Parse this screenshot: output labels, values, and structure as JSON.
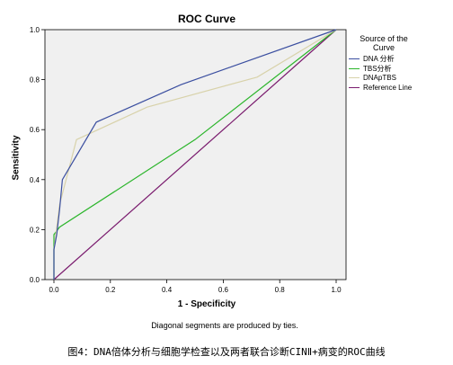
{
  "chart_data": {
    "type": "line",
    "title": "ROC Curve",
    "xlabel": "1 - Specificity",
    "ylabel": "Sensitivity",
    "xlim": [
      0,
      1
    ],
    "ylim": [
      0,
      1
    ],
    "x_ticks": [
      "0.0",
      "0.2",
      "0.4",
      "0.6",
      "0.8",
      "1.0"
    ],
    "y_ticks": [
      "0.0",
      "0.2",
      "0.4",
      "0.6",
      "0.8",
      "1.0"
    ],
    "grid": false,
    "legend_title": "Source of the Curve",
    "legend_position": "right",
    "series": [
      {
        "name": "DNA 分析",
        "color": "#3b4fa0",
        "x": [
          0.0,
          0.0,
          0.01,
          0.02,
          0.03,
          0.15,
          0.45,
          1.0
        ],
        "y": [
          0.0,
          0.12,
          0.18,
          0.28,
          0.4,
          0.63,
          0.78,
          1.0
        ]
      },
      {
        "name": "TBS分析",
        "color": "#2bb52b",
        "x": [
          0.0,
          0.0,
          0.02,
          0.5,
          1.0
        ],
        "y": [
          0.0,
          0.18,
          0.21,
          0.56,
          1.0
        ]
      },
      {
        "name": "DNApTBS",
        "color": "#d8d2aa",
        "x": [
          0.0,
          0.0,
          0.02,
          0.08,
          0.33,
          0.72,
          1.0
        ],
        "y": [
          0.0,
          0.12,
          0.3,
          0.56,
          0.69,
          0.81,
          1.0
        ]
      },
      {
        "name": "Reference Line",
        "color": "#7a1b6e",
        "x": [
          0.0,
          1.0
        ],
        "y": [
          0.0,
          1.0
        ]
      }
    ],
    "footnote": "Diagonal segments are produced by ties."
  },
  "caption": "图4：DNA倍体分析与细胞学检查以及两者联合诊断CINⅡ+病变的ROC曲线"
}
